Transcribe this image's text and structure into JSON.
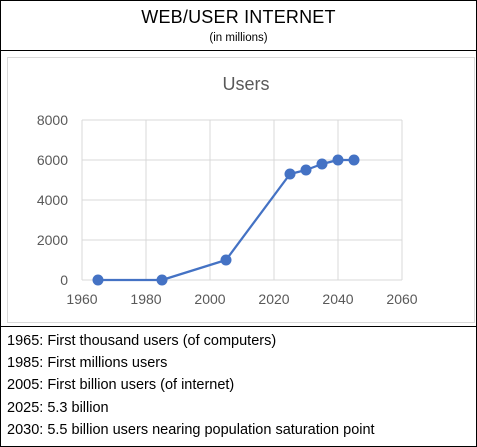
{
  "header": {
    "title": "WEB/USER INTERNET",
    "subtitle": "(in millions)"
  },
  "chart_data": {
    "type": "line",
    "title": "Users",
    "xlabel": "",
    "ylabel": "",
    "x": [
      1965,
      1985,
      2005,
      2025,
      2030,
      2035,
      2040,
      2045
    ],
    "series": [
      {
        "values": [
          0,
          0,
          1000,
          5300,
          5500,
          5800,
          6000,
          6000
        ],
        "color": "#4472c4"
      }
    ],
    "xlim": [
      1960,
      2060
    ],
    "ylim": [
      0,
      8000
    ],
    "xticks": [
      "1960",
      "1980",
      "2000",
      "2020",
      "2040",
      "2060"
    ],
    "yticks": [
      "0",
      "2000",
      "4000",
      "6000",
      "8000"
    ],
    "grid": "horizontal",
    "legend": "none",
    "line_color": "#4472c4",
    "grid_color": "#d9d9d9"
  },
  "notes": [
    "1965: First thousand users (of computers)",
    "1985: First millions users",
    "2005: First billion users (of internet)",
    "2025: 5.3 billion",
    "2030: 5.5 billion users nearing population saturation point"
  ]
}
